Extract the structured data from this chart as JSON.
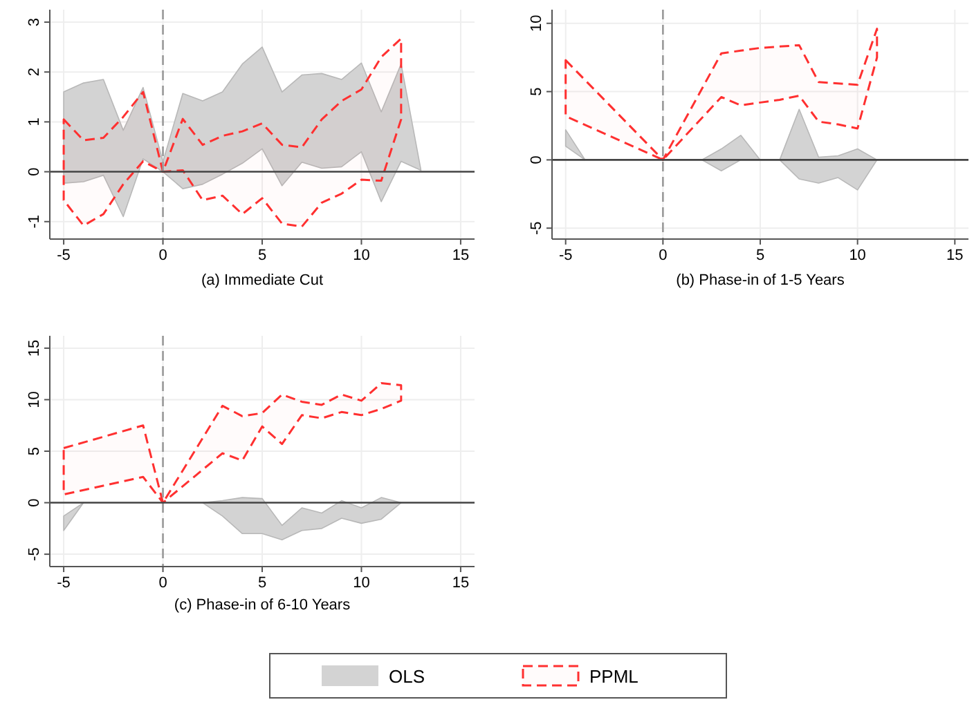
{
  "chart_data": [
    {
      "type": "line",
      "xlabel": "(a) Immediate Cut",
      "xlim": [
        -5.7,
        15.7
      ],
      "xticks": [
        -5,
        0,
        5,
        10,
        15
      ],
      "ylim": [
        -1.35,
        3.25
      ],
      "yticks": [
        -1,
        0,
        1,
        2,
        3
      ],
      "grid": true,
      "legend": "bottom",
      "ref_lines": [
        {
          "axis": "x",
          "value": 0,
          "color": "#999999",
          "line_style": "dashed"
        },
        {
          "axis": "y",
          "value": 0,
          "color": "#444444",
          "line_style": "solid"
        }
      ],
      "series": [
        {
          "name": "OLS",
          "color": "#d3d3d3",
          "x": [
            -5,
            -4,
            -3,
            -2,
            -1,
            0,
            1,
            2,
            3,
            4,
            5,
            6,
            7,
            8,
            9,
            10,
            11,
            12,
            13
          ],
          "values": [
            null,
            null,
            null,
            null,
            null,
            null,
            null,
            null,
            null,
            null,
            null,
            null,
            null,
            null,
            null,
            null,
            null,
            null,
            null
          ],
          "upper": [
            1.6,
            1.78,
            1.85,
            0.83,
            1.69,
            0.2,
            1.57,
            1.42,
            1.6,
            2.16,
            2.5,
            1.6,
            1.94,
            1.97,
            1.85,
            2.18,
            1.2,
            2.16,
            0.03
          ],
          "lower": [
            -0.23,
            -0.2,
            -0.07,
            -0.9,
            0.26,
            0,
            -0.34,
            -0.25,
            -0.05,
            0.17,
            0.46,
            -0.28,
            0.19,
            0.07,
            0.1,
            0.4,
            -0.6,
            0.21,
            0.03
          ]
        },
        {
          "name": "PPML",
          "color": "#ff3030",
          "line_style": "dashed",
          "x": [
            -5,
            -4,
            -3,
            -2,
            -1,
            0,
            1,
            2,
            3,
            4,
            5,
            6,
            7,
            8,
            9,
            10,
            11,
            12
          ],
          "values": [
            null,
            null,
            null,
            null,
            null,
            null,
            null,
            null,
            null,
            null,
            null,
            null,
            null,
            null,
            null,
            null,
            null,
            null
          ],
          "upper": [
            1.05,
            0.63,
            0.68,
            1.1,
            1.6,
            0,
            1.06,
            0.54,
            0.72,
            0.81,
            0.97,
            0.54,
            0.49,
            1.05,
            1.42,
            1.65,
            2.3,
            2.67
          ],
          "lower": [
            -0.57,
            -1.08,
            -0.85,
            -0.25,
            0.21,
            0,
            0.03,
            -0.57,
            -0.48,
            -0.85,
            -0.53,
            -1.04,
            -1.1,
            -0.62,
            -0.44,
            -0.16,
            -0.18,
            1.05
          ]
        }
      ]
    },
    {
      "type": "line",
      "xlabel": "(b) Phase-in of 1-5 Years",
      "xlim": [
        -5.7,
        15.7
      ],
      "xticks": [
        -5,
        0,
        5,
        10,
        15
      ],
      "ylim": [
        -5.8,
        11
      ],
      "yticks": [
        -5,
        0,
        5,
        10
      ],
      "grid": true,
      "ref_lines": [
        {
          "axis": "x",
          "value": 0,
          "color": "#999999",
          "line_style": "dashed"
        },
        {
          "axis": "y",
          "value": 0,
          "color": "#444444",
          "line_style": "solid"
        }
      ],
      "series": [
        {
          "color": "#d3d3d3",
          "x": [
            -5,
            -4,
            -3,
            -2,
            -1,
            0,
            1,
            2,
            3,
            4,
            5,
            6,
            7,
            8,
            9,
            10,
            11
          ],
          "values": [
            null,
            null,
            null,
            null,
            null,
            null,
            null,
            null,
            null,
            null,
            null,
            null,
            null,
            null,
            null,
            null,
            null
          ],
          "upper": [
            2.2,
            0,
            null,
            null,
            null,
            null,
            null,
            0,
            0.8,
            1.8,
            0,
            0,
            3.7,
            0.2,
            0.3,
            0.8,
            0
          ],
          "lower": [
            1.0,
            0,
            null,
            null,
            null,
            null,
            null,
            0,
            -0.8,
            0,
            0,
            0,
            -1.4,
            -1.7,
            -1.3,
            -2.2,
            0
          ]
        },
        {
          "color": "#ff3030",
          "line_style": "dashed",
          "x": [
            -5,
            0,
            3,
            4,
            5,
            6,
            7,
            8,
            9,
            10,
            11
          ],
          "values": [
            null,
            null,
            null,
            null,
            null,
            null,
            null,
            null,
            null,
            null,
            null
          ],
          "upper": [
            7.3,
            0,
            7.8,
            8,
            8.2,
            8.3,
            8.4,
            5.7,
            5.6,
            5.5,
            9.6
          ],
          "lower": [
            3.2,
            0,
            4.6,
            4,
            4.2,
            4.4,
            4.7,
            2.8,
            2.6,
            2.3,
            7.5
          ]
        }
      ]
    },
    {
      "type": "line",
      "xlabel": "(c) Phase-in of 6-10 Years",
      "xlim": [
        -5.7,
        15.7
      ],
      "xticks": [
        -5,
        0,
        5,
        10,
        15
      ],
      "ylim": [
        -6.2,
        16.2
      ],
      "yticks": [
        -5,
        0,
        5,
        10,
        15
      ],
      "grid": true,
      "ref_lines": [
        {
          "axis": "x",
          "value": 0,
          "color": "#999999",
          "line_style": "dashed"
        },
        {
          "axis": "y",
          "value": 0,
          "color": "#444444",
          "line_style": "solid"
        }
      ],
      "series": [
        {
          "color": "#d3d3d3",
          "x": [
            -5,
            -4,
            -3,
            -2,
            -1,
            0,
            1,
            2,
            3,
            4,
            5,
            6,
            7,
            8,
            9,
            10,
            11,
            12
          ],
          "values": [
            null,
            null,
            null,
            null,
            null,
            null,
            null,
            null,
            null,
            null,
            null,
            null,
            null,
            null,
            null,
            null,
            null,
            null
          ],
          "upper": [
            -1.3,
            0,
            null,
            null,
            null,
            null,
            null,
            0,
            0.2,
            0.5,
            0.4,
            -2.2,
            -0.5,
            -1,
            0.2,
            -0.5,
            0.5,
            0
          ],
          "lower": [
            -2.7,
            0,
            null,
            null,
            null,
            null,
            null,
            0,
            -1.3,
            -3,
            -3,
            -3.6,
            -2.7,
            -2.5,
            -1.5,
            -2,
            -1.6,
            0
          ]
        },
        {
          "color": "#ff3030",
          "line_style": "dashed",
          "x": [
            -5,
            -1,
            0,
            3,
            4,
            5,
            6,
            7,
            8,
            9,
            10,
            11,
            12
          ],
          "values": [
            null,
            null,
            null,
            null,
            null,
            null,
            null,
            null,
            null,
            null,
            null,
            null,
            null
          ],
          "upper": [
            5.3,
            7.5,
            0,
            9.4,
            8.4,
            8.7,
            10.5,
            9.8,
            9.5,
            10.5,
            9.9,
            11.6,
            11.4
          ],
          "lower": [
            0.8,
            2.5,
            0,
            4.8,
            4.1,
            7.4,
            5.7,
            8.5,
            8.2,
            8.8,
            8.5,
            9.1,
            9.9
          ]
        }
      ]
    }
  ]
}
